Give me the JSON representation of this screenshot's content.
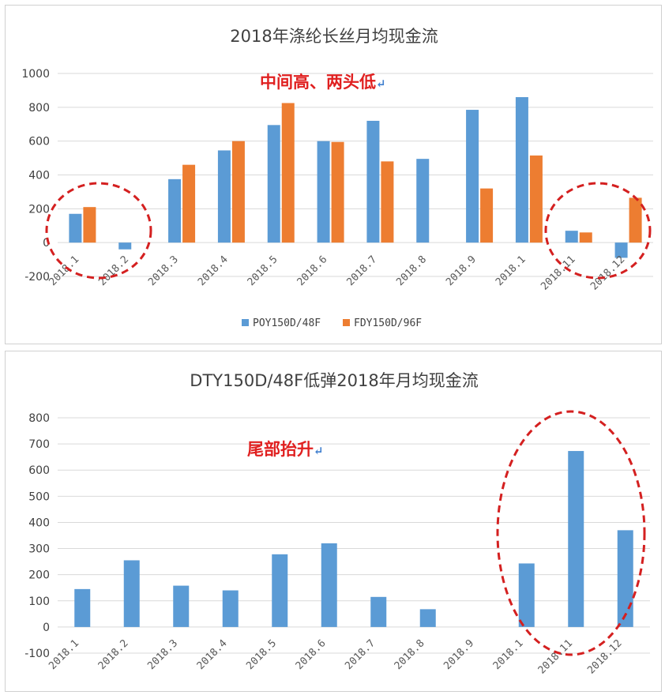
{
  "colors": {
    "poy": "#5b9bd5",
    "fdy": "#ed7d31",
    "dty": "#5b9bd5",
    "annotation": "#e02020",
    "circle": "#d42020"
  },
  "chart_data": [
    {
      "type": "bar",
      "title": "2018年涤纶长丝月均现金流",
      "categories": [
        "2018.1",
        "2018.2",
        "2018.3",
        "2018.4",
        "2018.5",
        "2018.6",
        "2018.7",
        "2018.8",
        "2018.9",
        "2018.1",
        "2018.11",
        "2018.12"
      ],
      "series": [
        {
          "name": "POY150D/48F",
          "values": [
            170,
            -40,
            375,
            545,
            695,
            600,
            720,
            495,
            785,
            860,
            70,
            -90
          ]
        },
        {
          "name": "FDY150D/96F",
          "values": [
            210,
            null,
            460,
            600,
            825,
            595,
            480,
            null,
            320,
            515,
            60,
            265
          ]
        }
      ],
      "ylim": [
        -200,
        1000
      ],
      "yticks": [
        -200,
        0,
        200,
        400,
        600,
        800,
        1000
      ],
      "grid": true,
      "legend": "bottom",
      "annotation": "中间高、两头低",
      "annotation_mark": "↵"
    },
    {
      "type": "bar",
      "title": "DTY150D/48F低弹2018年月均现金流",
      "categories": [
        "2018.1",
        "2018.2",
        "2018.3",
        "2018.4",
        "2018.5",
        "2018.6",
        "2018.7",
        "2018.8",
        "2018.9",
        "2018.1",
        "2018.11",
        "2018.12"
      ],
      "series": [
        {
          "values": [
            145,
            255,
            158,
            140,
            278,
            320,
            115,
            68,
            0,
            243,
            673,
            370
          ]
        }
      ],
      "ylim": [
        -100,
        800
      ],
      "yticks": [
        -100,
        0,
        100,
        200,
        300,
        400,
        500,
        600,
        700,
        800
      ],
      "grid": true,
      "annotation": "尾部抬升",
      "annotation_mark": "↵"
    }
  ]
}
